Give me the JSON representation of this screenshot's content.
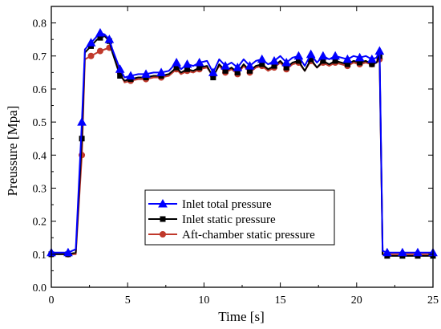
{
  "chart_data": {
    "type": "line",
    "title": "",
    "xlabel": "Time [s]",
    "ylabel": "Preussure [Mpa]",
    "xlim": [
      0,
      25
    ],
    "ylim": [
      0.0,
      0.85
    ],
    "xticks": [
      "0",
      "5",
      "10",
      "15",
      "20",
      "25"
    ],
    "yticks": [
      "0.0",
      "0.1",
      "0.2",
      "0.3",
      "0.4",
      "0.5",
      "0.6",
      "0.7",
      "0.8"
    ],
    "grid": false,
    "legend_position": "lower-center",
    "series": [
      {
        "name": "Inlet total pressure",
        "color": "#0000ff",
        "marker": "triangle",
        "x": [
          0,
          0.5,
          1.1,
          1.6,
          2.0,
          2.2,
          2.6,
          3.0,
          3.2,
          3.5,
          3.8,
          4.0,
          4.5,
          4.8,
          5.2,
          5.7,
          6.2,
          6.7,
          7.2,
          7.7,
          8.2,
          8.5,
          8.9,
          9.3,
          9.7,
          10.2,
          10.6,
          11.0,
          11.4,
          11.8,
          12.2,
          12.6,
          13.0,
          13.4,
          13.8,
          14.2,
          14.6,
          15.0,
          15.4,
          15.8,
          16.2,
          16.6,
          17.0,
          17.4,
          17.8,
          18.2,
          18.6,
          19.0,
          19.4,
          19.8,
          20.2,
          20.6,
          21.0,
          21.3,
          21.5,
          21.7,
          22.0,
          22.5,
          23.0,
          23.5,
          24.0,
          24.5,
          25.0
        ],
        "y": [
          0.105,
          0.105,
          0.105,
          0.115,
          0.5,
          0.72,
          0.74,
          0.76,
          0.77,
          0.765,
          0.75,
          0.72,
          0.66,
          0.635,
          0.64,
          0.645,
          0.645,
          0.65,
          0.65,
          0.655,
          0.68,
          0.66,
          0.675,
          0.67,
          0.68,
          0.685,
          0.65,
          0.69,
          0.67,
          0.68,
          0.665,
          0.69,
          0.67,
          0.685,
          0.69,
          0.675,
          0.685,
          0.7,
          0.68,
          0.695,
          0.7,
          0.67,
          0.705,
          0.68,
          0.7,
          0.69,
          0.7,
          0.695,
          0.69,
          0.7,
          0.695,
          0.7,
          0.69,
          0.695,
          0.715,
          0.11,
          0.105,
          0.105,
          0.105,
          0.105,
          0.105,
          0.105,
          0.105
        ]
      },
      {
        "name": "Inlet static pressure",
        "color": "#000000",
        "marker": "square",
        "x": [
          0,
          0.5,
          1.1,
          1.6,
          2.0,
          2.2,
          2.6,
          3.0,
          3.2,
          3.5,
          3.8,
          4.0,
          4.5,
          4.8,
          5.2,
          5.7,
          6.2,
          6.7,
          7.2,
          7.7,
          8.2,
          8.5,
          8.9,
          9.3,
          9.7,
          10.2,
          10.6,
          11.0,
          11.4,
          11.8,
          12.2,
          12.6,
          13.0,
          13.4,
          13.8,
          14.2,
          14.6,
          15.0,
          15.4,
          15.8,
          16.2,
          16.6,
          17.0,
          17.4,
          17.8,
          18.2,
          18.6,
          19.0,
          19.4,
          19.8,
          20.2,
          20.6,
          21.0,
          21.3,
          21.5,
          21.7,
          22.0,
          22.5,
          23.0,
          23.5,
          24.0,
          24.5,
          25.0
        ],
        "y": [
          0.1,
          0.1,
          0.1,
          0.105,
          0.45,
          0.71,
          0.73,
          0.75,
          0.755,
          0.76,
          0.745,
          0.71,
          0.64,
          0.625,
          0.63,
          0.635,
          0.635,
          0.64,
          0.64,
          0.645,
          0.665,
          0.65,
          0.66,
          0.655,
          0.665,
          0.67,
          0.635,
          0.675,
          0.655,
          0.665,
          0.65,
          0.675,
          0.655,
          0.67,
          0.675,
          0.66,
          0.67,
          0.685,
          0.665,
          0.68,
          0.685,
          0.655,
          0.69,
          0.665,
          0.685,
          0.675,
          0.685,
          0.68,
          0.675,
          0.685,
          0.68,
          0.685,
          0.675,
          0.68,
          0.7,
          0.1,
          0.095,
          0.095,
          0.095,
          0.095,
          0.095,
          0.095,
          0.095
        ]
      },
      {
        "name": "Aft-chamber static pressure",
        "color": "#c0392b",
        "marker": "circle",
        "x": [
          0,
          0.5,
          1.1,
          1.6,
          2.0,
          2.2,
          2.6,
          3.0,
          3.2,
          3.5,
          3.8,
          4.0,
          4.5,
          4.8,
          5.2,
          5.7,
          6.2,
          6.7,
          7.2,
          7.7,
          8.2,
          8.5,
          8.9,
          9.3,
          9.7,
          10.2,
          10.6,
          11.0,
          11.4,
          11.8,
          12.2,
          12.6,
          13.0,
          13.4,
          13.8,
          14.2,
          14.6,
          15.0,
          15.4,
          15.8,
          16.2,
          16.6,
          17.0,
          17.4,
          17.8,
          18.2,
          18.6,
          19.0,
          19.4,
          19.8,
          20.2,
          20.6,
          21.0,
          21.3,
          21.5,
          21.7,
          22.0,
          22.5,
          23.0,
          23.5,
          24.0,
          24.5,
          25.0
        ],
        "y": [
          0.1,
          0.1,
          0.1,
          0.1,
          0.4,
          0.69,
          0.7,
          0.71,
          0.715,
          0.72,
          0.725,
          0.72,
          0.65,
          0.62,
          0.625,
          0.63,
          0.63,
          0.635,
          0.635,
          0.64,
          0.66,
          0.645,
          0.655,
          0.65,
          0.66,
          0.665,
          0.64,
          0.67,
          0.65,
          0.66,
          0.645,
          0.67,
          0.65,
          0.665,
          0.67,
          0.655,
          0.665,
          0.68,
          0.66,
          0.675,
          0.68,
          0.655,
          0.685,
          0.665,
          0.68,
          0.67,
          0.68,
          0.675,
          0.67,
          0.68,
          0.675,
          0.68,
          0.675,
          0.68,
          0.69,
          0.1,
          0.1,
          0.1,
          0.1,
          0.1,
          0.1,
          0.1,
          0.1
        ]
      }
    ]
  }
}
